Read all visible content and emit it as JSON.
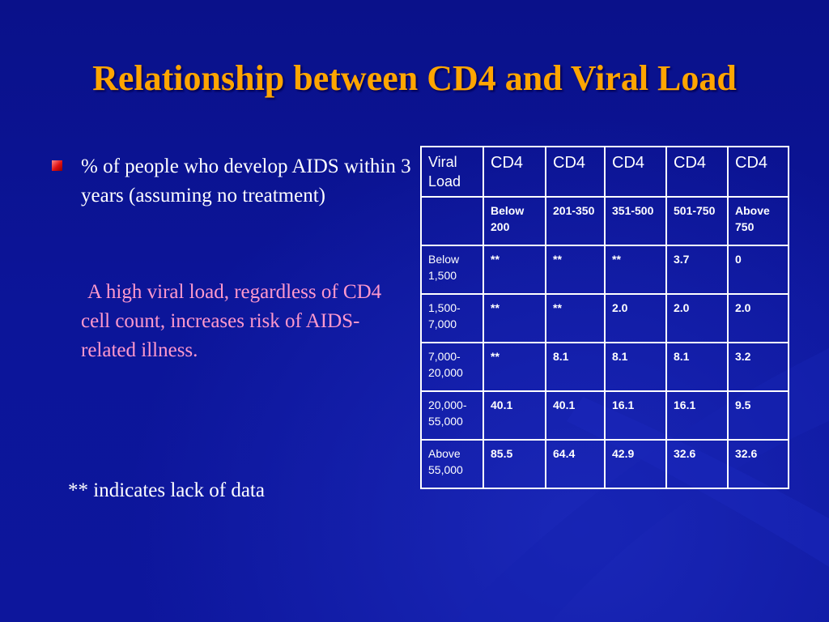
{
  "slide": {
    "title": "Relationship between CD4 and Viral Load",
    "bullet_prefix": "%",
    "bullet_text": " of people who develop AIDS within 3 years (assuming no treatment)",
    "note_text": "A high viral load, regardless of CD4 cell count, increases risk of AIDS-related illness.",
    "footnote": "** indicates lack of data"
  },
  "table": {
    "corner_header": "Viral Load",
    "cd4_headers": [
      "CD4",
      "CD4",
      "CD4",
      "CD4",
      "CD4"
    ],
    "cd4_ranges": [
      "Below 200",
      "201-350",
      "351-500",
      "501-750",
      "Above 750"
    ],
    "rows": [
      {
        "label": "Below 1,500",
        "values": [
          "**",
          "**",
          "**",
          "3.7",
          "0"
        ]
      },
      {
        "label": "1,500-7,000",
        "values": [
          "**",
          "**",
          "2.0",
          "2.0",
          "2.0"
        ]
      },
      {
        "label": "7,000-20,000",
        "values": [
          "**",
          "8.1",
          "8.1",
          "8.1",
          "3.2"
        ]
      },
      {
        "label": "20,000-55,000",
        "values": [
          "40.1",
          "40.1",
          "16.1",
          "16.1",
          "9.5"
        ]
      },
      {
        "label": "Above 55,000",
        "values": [
          "85.5",
          "64.4",
          "42.9",
          "32.6",
          "32.6"
        ]
      }
    ]
  },
  "colors": {
    "background": "#0b1396",
    "title": "#ffa500",
    "note": "#ff99cc",
    "text": "#ffffff"
  }
}
